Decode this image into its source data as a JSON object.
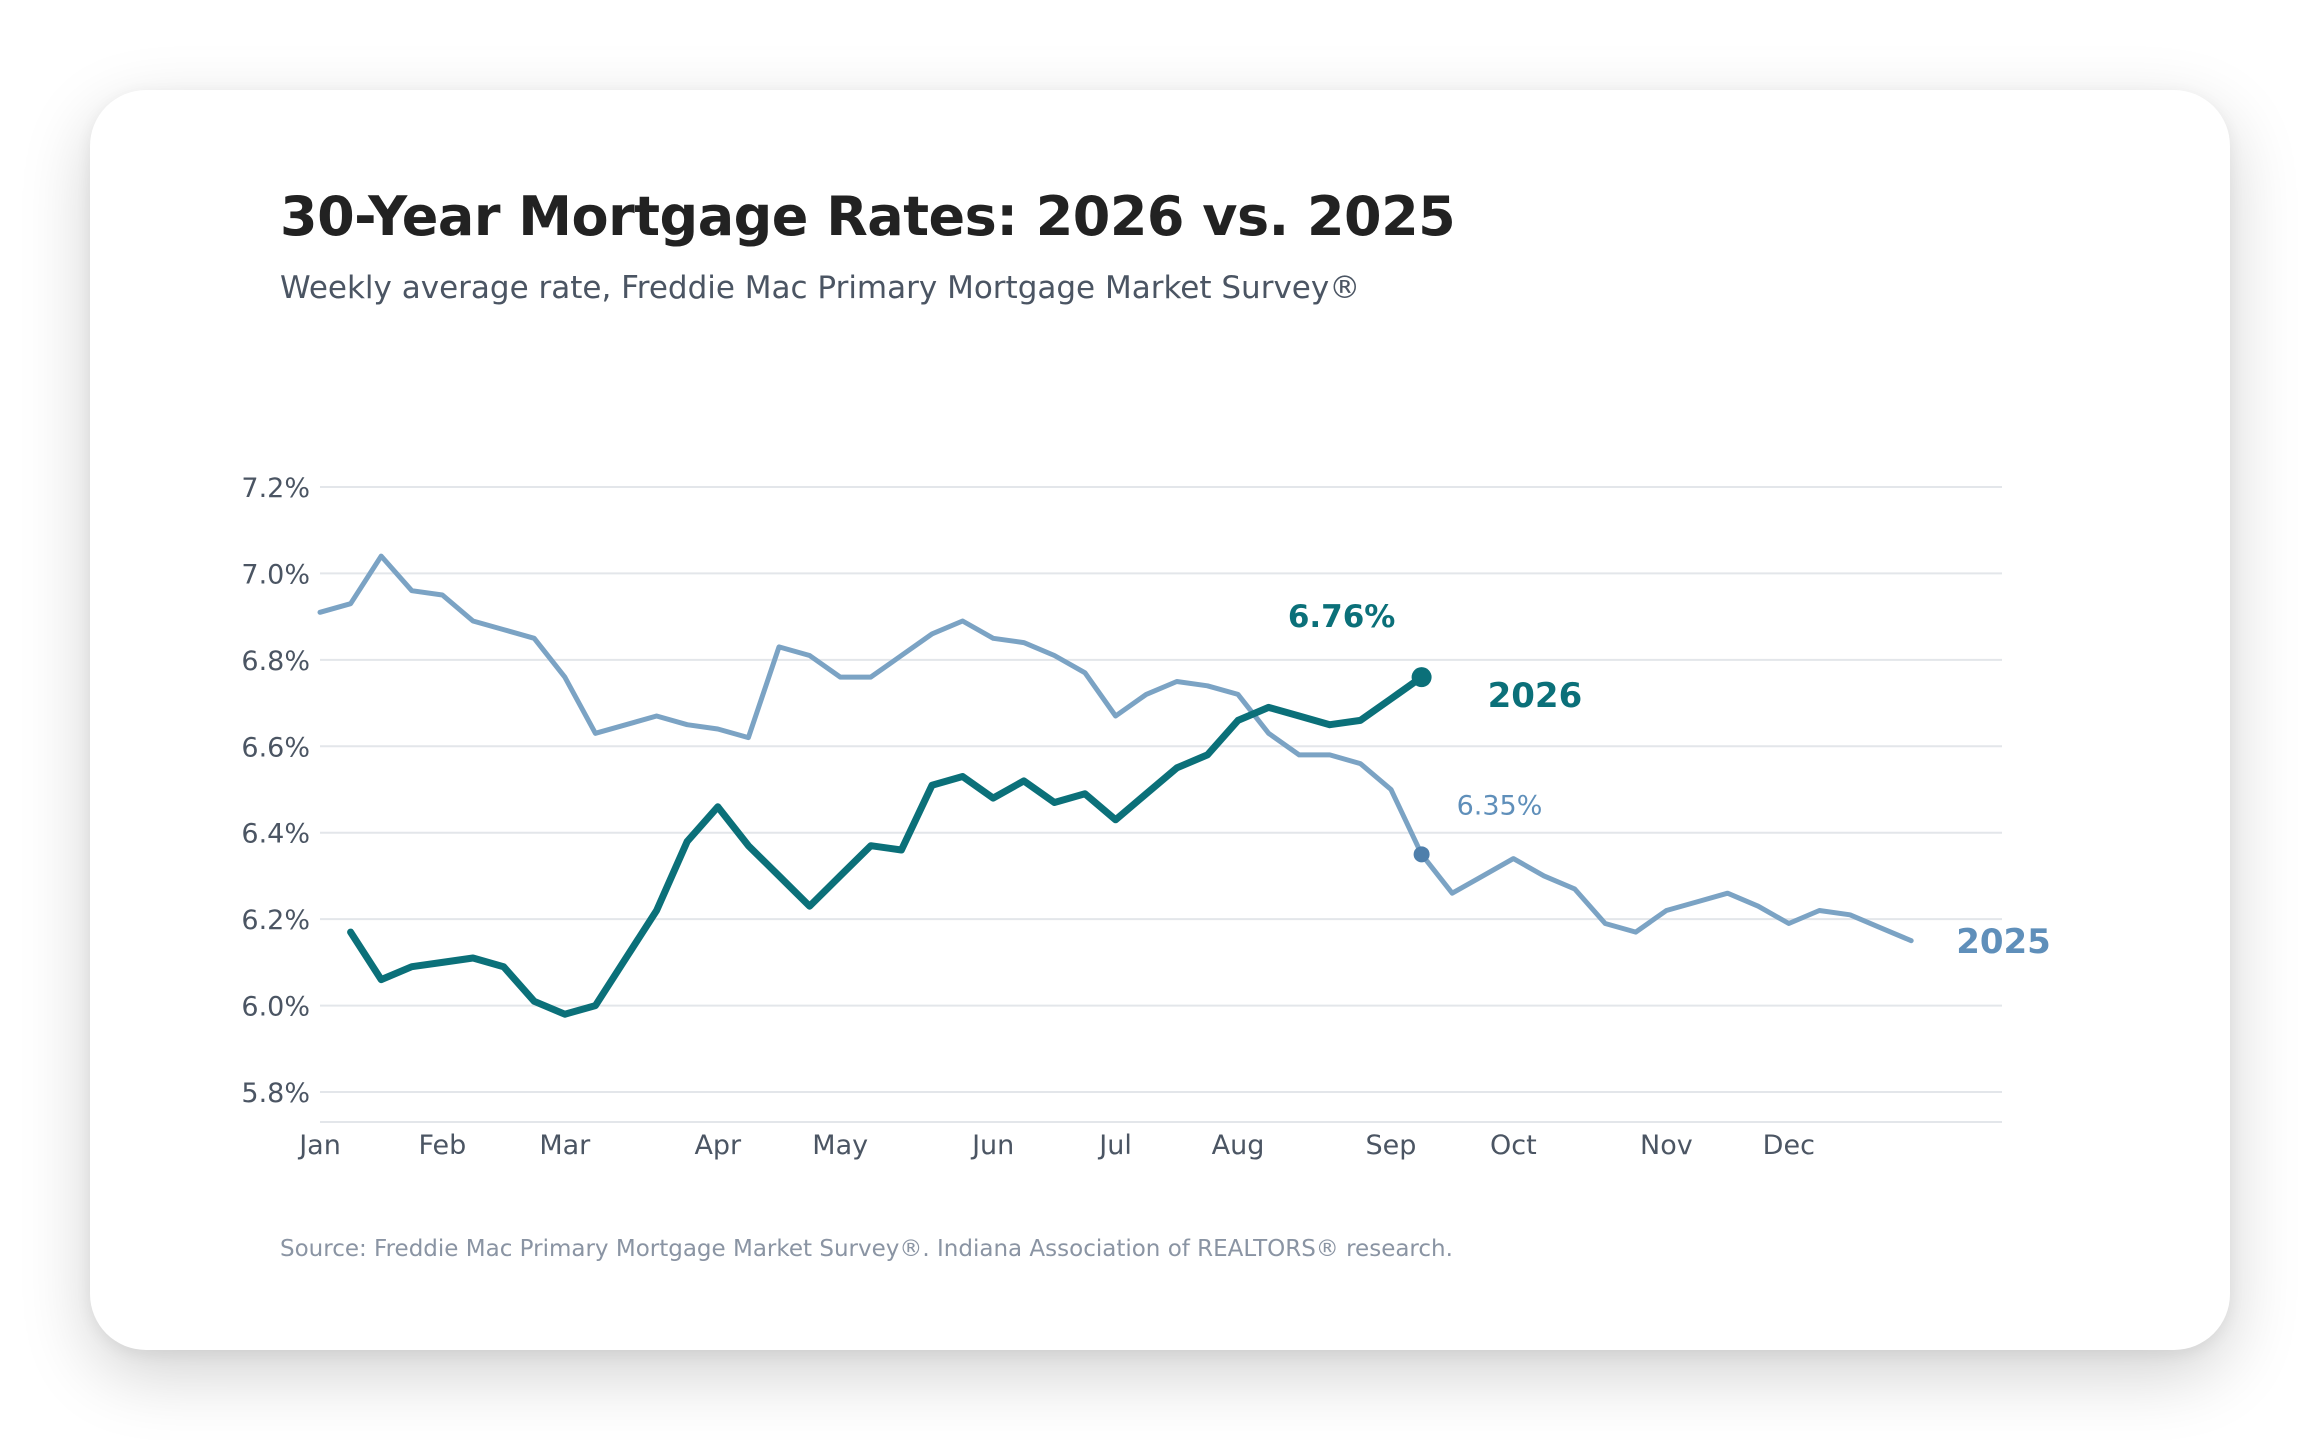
{
  "title": "30-Year Mortgage Rates: 2026 vs. 2025",
  "subtitle": "Weekly average rate, Freddie Mac Primary Mortgage Market Survey®",
  "source": "Source: Freddie Mac Primary Mortgage Market Survey®. Indiana Association of REALTORS® research.",
  "colors": {
    "s2026": "#0b7079",
    "s2025": "#7ba3c4",
    "grid": "#e3e6ea",
    "axis": "#4b5563"
  },
  "chart_data": {
    "type": "line",
    "xlabel": "",
    "ylabel": "",
    "ylim": [
      5.8,
      7.2
    ],
    "y_ticks": [
      5.8,
      6.0,
      6.2,
      6.4,
      6.6,
      6.8,
      7.0,
      7.2
    ],
    "y_tick_labels": [
      "5.8%",
      "6.0%",
      "6.2%",
      "6.4%",
      "6.6%",
      "6.8%",
      "7.0%",
      "7.2%"
    ],
    "x_ticks": [
      {
        "week": 0,
        "label": "Jan"
      },
      {
        "week": 4,
        "label": "Feb"
      },
      {
        "week": 8,
        "label": "Mar"
      },
      {
        "week": 13,
        "label": "Apr"
      },
      {
        "week": 17,
        "label": "May"
      },
      {
        "week": 22,
        "label": "Jun"
      },
      {
        "week": 26,
        "label": "Jul"
      },
      {
        "week": 30,
        "label": "Aug"
      },
      {
        "week": 35,
        "label": "Sep"
      },
      {
        "week": 39,
        "label": "Oct"
      },
      {
        "week": 44,
        "label": "Nov"
      },
      {
        "week": 48,
        "label": "Dec"
      }
    ],
    "grid": true,
    "series": [
      {
        "name": "2025",
        "label": "2025",
        "color": "#7ba3c4",
        "start_week": 0,
        "values": [
          6.91,
          6.93,
          7.04,
          6.96,
          6.95,
          6.89,
          6.87,
          6.85,
          6.76,
          6.63,
          6.65,
          6.67,
          6.65,
          6.64,
          6.62,
          6.83,
          6.81,
          6.76,
          6.76,
          6.81,
          6.86,
          6.89,
          6.85,
          6.84,
          6.81,
          6.77,
          6.67,
          6.72,
          6.75,
          6.74,
          6.72,
          6.63,
          6.58,
          6.58,
          6.56,
          6.5,
          6.35,
          6.26,
          6.3,
          6.34,
          6.3,
          6.27,
          6.19,
          6.17,
          6.22,
          6.24,
          6.26,
          6.23,
          6.19,
          6.22,
          6.21,
          6.18,
          6.15
        ],
        "marker_week": 36,
        "marker_label": "6.35%"
      },
      {
        "name": "2026",
        "label": "2026",
        "color": "#0b7079",
        "start_week": 1,
        "values": [
          6.17,
          6.06,
          6.09,
          6.1,
          6.11,
          6.09,
          6.01,
          5.98,
          6.0,
          6.11,
          6.22,
          6.38,
          6.46,
          6.37,
          6.3,
          6.23,
          6.3,
          6.37,
          6.36,
          6.51,
          6.53,
          6.48,
          6.52,
          6.47,
          6.49,
          6.43,
          6.49,
          6.55,
          6.58,
          6.66,
          6.69,
          6.67,
          6.65,
          6.66,
          6.71,
          6.76
        ],
        "marker_week": 36,
        "marker_label": "6.76%"
      }
    ]
  }
}
